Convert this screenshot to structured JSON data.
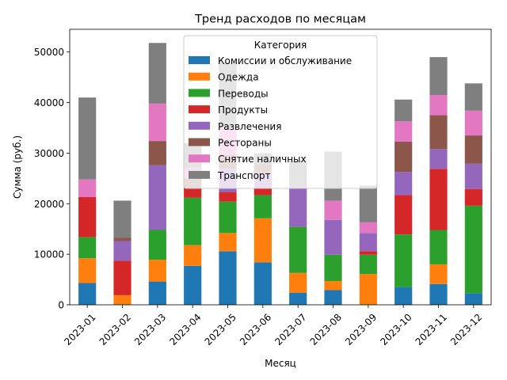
{
  "chart_data": {
    "type": "bar",
    "stacked": true,
    "title": "Тренд расходов по месяцам",
    "xlabel": "Месяц",
    "ylabel": "Сумма (руб.)",
    "ylim": [
      0,
      54500
    ],
    "yticks": [
      0,
      10000,
      20000,
      30000,
      40000,
      50000
    ],
    "grid": false,
    "legend": {
      "title": "Категория",
      "placement": "upper-center"
    },
    "categories": [
      "2023-01",
      "2023-02",
      "2023-03",
      "2023-04",
      "2023-05",
      "2023-06",
      "2023-07",
      "2023-08",
      "2023-09",
      "2023-10",
      "2023-11",
      "2023-12"
    ],
    "series": [
      {
        "name": "Комиссии и обслуживание",
        "color": "#1f77b4",
        "values": [
          4300,
          0,
          4600,
          7700,
          10600,
          8400,
          2400,
          2900,
          0,
          3500,
          4100,
          2300
        ]
      },
      {
        "name": "Одежда",
        "color": "#ff7f0e",
        "values": [
          4900,
          1900,
          4300,
          4100,
          3600,
          8700,
          3900,
          1800,
          6100,
          0,
          3900,
          0
        ]
      },
      {
        "name": "Переводы",
        "color": "#2ca02c",
        "values": [
          4200,
          0,
          5900,
          9400,
          6200,
          4600,
          9100,
          5200,
          3800,
          10400,
          6800,
          17300
        ]
      },
      {
        "name": "Продукты",
        "color": "#d62728",
        "values": [
          7900,
          6800,
          0,
          1900,
          1900,
          1500,
          0,
          0,
          700,
          7800,
          12100,
          3300
        ]
      },
      {
        "name": "Развлечения",
        "color": "#9467bd",
        "values": [
          0,
          3900,
          12800,
          0,
          4600,
          2700,
          7800,
          6900,
          3600,
          4600,
          3900,
          5000
        ]
      },
      {
        "name": "Рестораны",
        "color": "#8c564b",
        "values": [
          0,
          700,
          4800,
          1900,
          2800,
          1900,
          0,
          0,
          0,
          6000,
          6700,
          5600
        ]
      },
      {
        "name": "Снятие наличных",
        "color": "#e377c2",
        "values": [
          3500,
          0,
          7400,
          2100,
          5300,
          0,
          0,
          3800,
          2100,
          4000,
          4000,
          4900
        ]
      },
      {
        "name": "Транспорт",
        "color": "#7f7f7f",
        "values": [
          16200,
          7300,
          12000,
          4900,
          13000,
          2200,
          5300,
          9700,
          7300,
          4300,
          7500,
          5400
        ]
      }
    ]
  }
}
